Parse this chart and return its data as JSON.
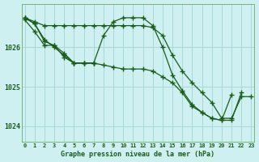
{
  "title": "Graphe pression niveau de la mer (hPa)",
  "xlabel_ticks": [
    "0",
    "1",
    "2",
    "3",
    "4",
    "5",
    "6",
    "7",
    "8",
    "9",
    "10",
    "11",
    "12",
    "13",
    "14",
    "15",
    "16",
    "17",
    "18",
    "19",
    "20",
    "21",
    "22",
    "23"
  ],
  "yticks": [
    1024,
    1025,
    1026
  ],
  "ylim": [
    1023.6,
    1027.1
  ],
  "xlim": [
    -0.3,
    23.3
  ],
  "bg_color": "#cef0f0",
  "grid_color": "#a8d8d8",
  "line_color": "#1a5c1a",
  "marker": "+",
  "markersize": 4,
  "linewidth": 0.9,
  "series": [
    [
      1026.75,
      1026.65,
      1026.55,
      1026.55,
      1026.55,
      1026.55,
      1026.55,
      1026.55,
      1026.55,
      1026.55,
      1026.55,
      1026.55,
      1026.55,
      1026.5,
      1026.3,
      1025.8,
      1025.4,
      1025.1,
      1024.85,
      1024.6,
      1024.2,
      1024.2,
      1024.75,
      1024.75
    ],
    [
      1026.75,
      1026.6,
      1026.2,
      1026.0,
      1025.8,
      1025.6,
      1025.6,
      1025.6,
      1026.3,
      1026.65,
      1026.75,
      1026.75,
      1026.75,
      1026.55,
      1026.0,
      1025.3,
      1024.9,
      1024.55,
      1024.35,
      1024.2,
      1024.15,
      1024.15,
      1024.85,
      null
    ],
    [
      1026.7,
      1026.4,
      1026.05,
      1026.05,
      1025.75,
      1025.6,
      1025.6,
      1025.6,
      null,
      null,
      null,
      null,
      null,
      null,
      null,
      null,
      null,
      null,
      null,
      null,
      null,
      null,
      null,
      null
    ],
    [
      1026.75,
      1026.6,
      1026.15,
      1026.05,
      1025.85,
      1025.6,
      1025.6,
      1025.6,
      1025.55,
      1025.5,
      1025.45,
      1025.45,
      1025.45,
      1025.4,
      1025.25,
      1025.1,
      1024.85,
      1024.5,
      1024.35,
      1024.2,
      1024.15,
      1024.8,
      null,
      null
    ]
  ]
}
